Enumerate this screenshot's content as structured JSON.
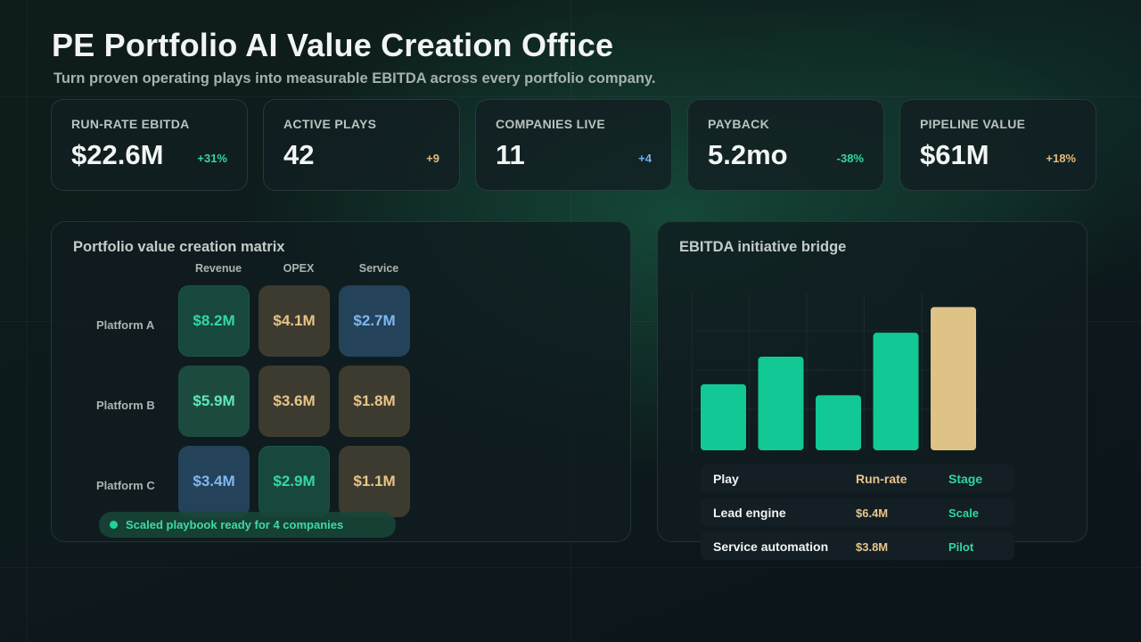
{
  "header": {
    "title": "PE Portfolio AI Value Creation Office",
    "subtitle": "Turn proven operating plays into measurable EBITDA across every portfolio company."
  },
  "kpis": [
    {
      "label": "RUN-RATE EBITDA",
      "value": "$22.6M",
      "delta": "+31%",
      "delta_color": "#36d69c"
    },
    {
      "label": "ACTIVE PLAYS",
      "value": "42",
      "delta": "+9",
      "delta_color": "#e2bd7c"
    },
    {
      "label": "COMPANIES LIVE",
      "value": "11",
      "delta": "+4",
      "delta_color": "#6fb0f0"
    },
    {
      "label": "PAYBACK",
      "value": "5.2mo",
      "delta": "-38%",
      "delta_color": "#36d69c"
    },
    {
      "label": "PIPELINE VALUE",
      "value": "$61M",
      "delta": "+18%",
      "delta_color": "#e2bd7c"
    }
  ],
  "matrix": {
    "title": "Portfolio value creation matrix",
    "columns": [
      "Revenue",
      "OPEX",
      "Service"
    ],
    "rows": [
      {
        "label": "Platform A",
        "cells": [
          "$8.2M",
          "$4.1M",
          "$2.7M"
        ]
      },
      {
        "label": "Platform B",
        "cells": [
          "$5.9M",
          "$3.6M",
          "$1.8M"
        ]
      },
      {
        "label": "Platform C",
        "cells": [
          "$3.4M",
          "$2.9M",
          "$1.1M"
        ]
      }
    ],
    "status": "Scaled playbook ready for 4 companies"
  },
  "bridge": {
    "title": "EBITDA initiative bridge",
    "table": {
      "headers": [
        "Play",
        "Run-rate",
        "Stage"
      ],
      "rows": [
        [
          "Lead engine",
          "$6.4M",
          "Scale"
        ],
        [
          "Service automation",
          "$3.8M",
          "Pilot"
        ]
      ]
    }
  },
  "chart_data": {
    "type": "bar",
    "categories": [
      "",
      "",
      "",
      "",
      ""
    ],
    "values": [
      3.6,
      5.1,
      3.0,
      6.4,
      7.8
    ],
    "ylim": [
      0,
      10
    ],
    "grid": true,
    "colors": [
      "#12c894",
      "#12c894",
      "#12c894",
      "#12c894",
      "#dfc286"
    ]
  }
}
